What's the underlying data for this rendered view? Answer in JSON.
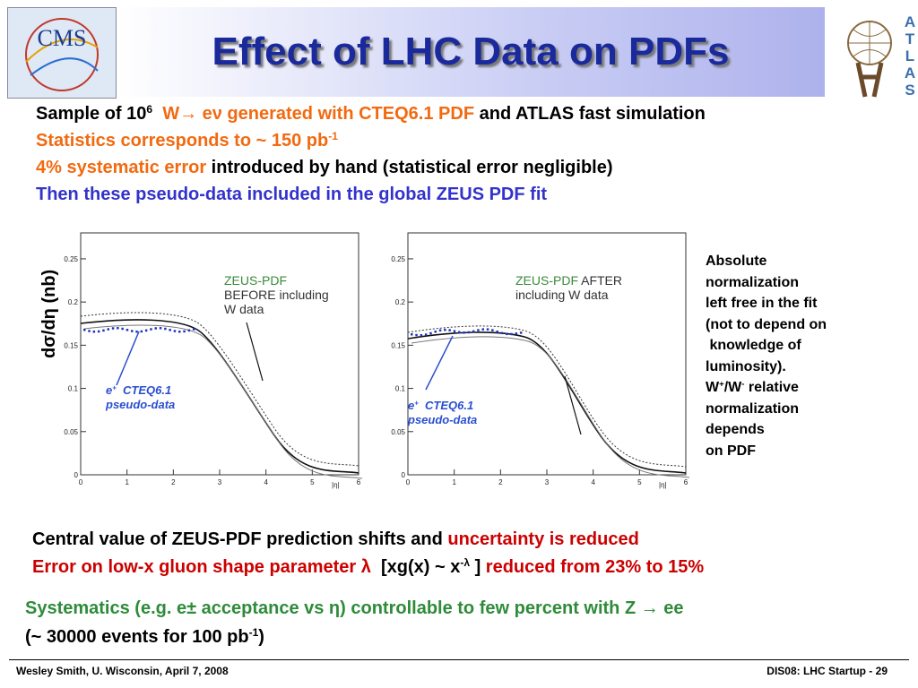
{
  "title": "Effect of LHC Data on PDFs",
  "logo_left": "CMS",
  "logo_right": [
    "A",
    "T",
    "L",
    "A",
    "S"
  ],
  "intro": [
    [
      {
        "text": "Sample of 10",
        "color": "#000000"
      },
      {
        "text": "6",
        "color": "#000000",
        "sup": true
      },
      {
        "text": "  W→ eν generated with CTEQ6.1 PDF",
        "color": "#f26a10"
      },
      {
        "text": " and ATLAS fast simulation",
        "color": "#000000"
      }
    ],
    [
      {
        "text": "Statistics corresponds to ~ 150 pb",
        "color": "#f26a10"
      },
      {
        "text": "-1",
        "color": "#f26a10",
        "sup": true
      }
    ],
    [
      {
        "text": "4% systematic error",
        "color": "#f26a10"
      },
      {
        "text": " introduced by hand (statistical error negligible)",
        "color": "#000000"
      }
    ],
    [
      {
        "text": "Then these pseudo-data included in the global ZEUS PDF fit",
        "color": "#3333cc"
      }
    ]
  ],
  "y_axis_label": "dσ/dη (nb)",
  "plots": [
    {
      "xticks": [
        0,
        1,
        2,
        3,
        4,
        5,
        6
      ],
      "yticks": [
        0,
        0.05,
        0.1,
        0.15,
        0.2,
        0.25
      ],
      "x_label": "|η|",
      "legend": [
        [
          {
            "text": "ZEUS-PDF",
            "color": "#3a8a3a"
          }
        ],
        [
          {
            "text": "BEFORE including",
            "color": "#333333"
          }
        ],
        [
          {
            "text": "W data",
            "color": "#333333"
          }
        ]
      ],
      "annotation": [
        [
          {
            "text": "e",
            "color": "#2a4fd0"
          },
          {
            "text": "+",
            "color": "#2a4fd0",
            "sup": true
          },
          {
            "text": "  CTEQ6.1",
            "color": "#2a4fd0"
          }
        ],
        [
          {
            "text": "pseudo-data",
            "color": "#2a4fd0"
          }
        ]
      ]
    },
    {
      "xticks": [
        0,
        1,
        2,
        3,
        4,
        5,
        6
      ],
      "yticks": [
        0,
        0.05,
        0.1,
        0.15,
        0.2,
        0.25
      ],
      "x_label": "|η|",
      "legend": [
        [
          {
            "text": "ZEUS-PDF",
            "color": "#3a8a3a"
          },
          {
            "text": " AFTER",
            "color": "#333333"
          }
        ],
        [
          {
            "text": "including W data",
            "color": "#333333"
          }
        ]
      ],
      "annotation": [
        [
          {
            "text": "e",
            "color": "#2a4fd0"
          },
          {
            "text": "+",
            "color": "#2a4fd0",
            "sup": true
          },
          {
            "text": "  CTEQ6.1",
            "color": "#2a4fd0"
          }
        ],
        [
          {
            "text": "pseudo-data",
            "color": "#2a4fd0"
          }
        ]
      ]
    }
  ],
  "side_note": [
    [
      {
        "text": "Absolute",
        "color": "#000000"
      }
    ],
    [
      {
        "text": "normalization",
        "color": "#000000"
      }
    ],
    [
      {
        "text": "left free in the fit",
        "color": "#000000"
      }
    ],
    [
      {
        "text": "(not to depend on",
        "color": "#000000"
      }
    ],
    [
      {
        "text": " knowledge of",
        "color": "#000000"
      }
    ],
    [
      {
        "text": "luminosity).",
        "color": "#000000"
      }
    ],
    [
      {
        "text": "W",
        "color": "#000000"
      },
      {
        "text": "+",
        "color": "#000000",
        "sup": true
      },
      {
        "text": "/W",
        "color": "#000000"
      },
      {
        "text": "-",
        "color": "#000000",
        "sup": true
      },
      {
        "text": " relative",
        "color": "#000000"
      }
    ],
    [
      {
        "text": "normalization",
        "color": "#000000"
      }
    ],
    [
      {
        "text": "depends",
        "color": "#000000"
      }
    ],
    [
      {
        "text": "on PDF",
        "color": "#000000"
      }
    ]
  ],
  "conclusions": [
    [
      {
        "text": "Central value of ZEUS-PDF prediction shifts and ",
        "color": "#000000"
      },
      {
        "text": "uncertainty is reduced",
        "color": "#cc0000"
      }
    ],
    [
      {
        "text": "Error on low-x gluon shape parameter λ  ",
        "color": "#cc0000"
      },
      {
        "text": "[xg(x) ~ x",
        "color": "#000000"
      },
      {
        "text": "-λ",
        "color": "#000000",
        "sup": true
      },
      {
        "text": " ]",
        "color": "#000000"
      },
      {
        "text": " reduced from 23% to 15%",
        "color": "#cc0000"
      }
    ]
  ],
  "systematics": [
    [
      {
        "text": "Systematics (e.g. e± acceptance vs η) controllable to few percent with Z → ee",
        "color": "#2e8b3a"
      }
    ],
    [
      {
        "text": "(~ 30000 events for 100 pb",
        "color": "#000000"
      },
      {
        "text": "-1",
        "color": "#000000",
        "sup": true
      },
      {
        "text": ")",
        "color": "#000000"
      }
    ]
  ],
  "footer": {
    "left": "Wesley Smith, U. Wisconsin, April 7, 2008",
    "right": "DIS08: LHC Startup -  29"
  }
}
